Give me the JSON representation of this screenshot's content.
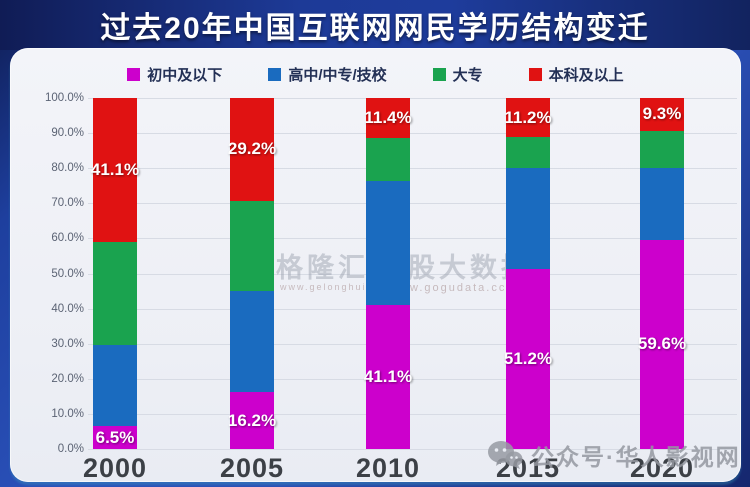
{
  "title": "过去20年中国互联网网民学历结构变迁",
  "chart_data": {
    "type": "bar",
    "stacked": true,
    "title": "过去20年中国互联网网民学历结构变迁",
    "categories": [
      "2000",
      "2005",
      "2010",
      "2015",
      "2020"
    ],
    "series": [
      {
        "name": "初中及以下",
        "color": "#cc00cc",
        "values": [
          6.5,
          16.2,
          41.1,
          51.2,
          59.6
        ]
      },
      {
        "name": "高中/中专/技校",
        "color": "#1a6bbf",
        "values": [
          23.0,
          28.9,
          35.4,
          29.0,
          20.6
        ]
      },
      {
        "name": "大专",
        "color": "#1aa34f",
        "values": [
          29.4,
          25.7,
          12.1,
          8.6,
          10.5
        ]
      },
      {
        "name": "本科及以上",
        "color": "#e01212",
        "values": [
          41.1,
          29.2,
          11.4,
          11.2,
          9.3
        ]
      }
    ],
    "shown_labels": {
      "bottom_series": "初中及以下",
      "bottom_values": [
        "6.5%",
        "16.2%",
        "41.1%",
        "51.2%",
        "59.6%"
      ],
      "top_series": "本科及以上",
      "top_values": [
        "41.1%",
        "29.2%",
        "11.4%",
        "11.2%",
        "9.3%"
      ]
    },
    "y_ticks": [
      "100.0%",
      "90.0%",
      "80.0%",
      "70.0%",
      "60.0%",
      "50.0%",
      "40.0%",
      "30.0%",
      "20.0%",
      "10.0%",
      "0.0%"
    ],
    "ylim": [
      0,
      100
    ],
    "xlabel": "",
    "ylabel": "",
    "grid": true,
    "legend_position": "top"
  },
  "watermarks": {
    "center_left": {
      "text": "格隆汇",
      "sub": "www.gelonghui.com"
    },
    "center_right": {
      "text": "股大数据",
      "sub": "w.gogudata.cc"
    },
    "bottom_right": {
      "icon": "wechat-icon",
      "text": "公众号·华人影视网"
    }
  }
}
